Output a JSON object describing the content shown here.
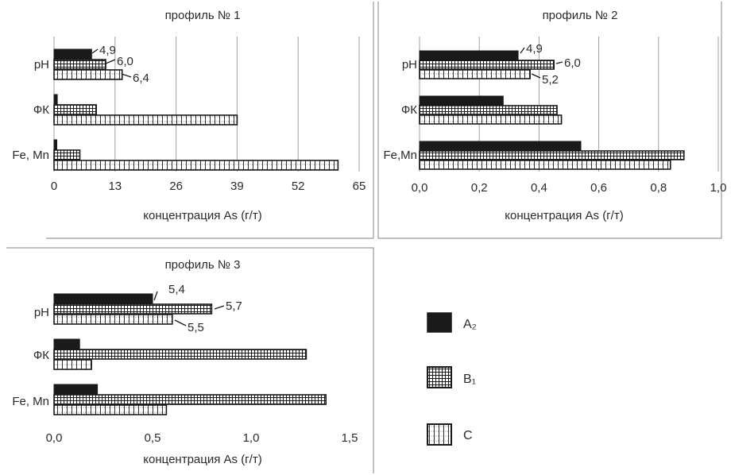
{
  "chart_data": [
    {
      "type": "bar",
      "orientation": "horizontal",
      "title": "профиль № 1",
      "xlabel": "концентрация As (г/т)",
      "categories": [
        "pH",
        "ФК",
        "Fe, Mn"
      ],
      "xlim": [
        0,
        65
      ],
      "xticks": [
        "0",
        "13",
        "26",
        "39",
        "52",
        "65"
      ],
      "grid": true,
      "series": [
        {
          "name": "A₂",
          "values": [
            8,
            0.7,
            0.6
          ]
        },
        {
          "name": "B₁",
          "values": [
            11,
            9,
            5.5
          ]
        },
        {
          "name": "C",
          "values": [
            14.5,
            39,
            60.5
          ]
        }
      ],
      "annotations": [
        {
          "category": "pH",
          "series": "A₂",
          "text": "4,9"
        },
        {
          "category": "pH",
          "series": "B₁",
          "text": "6,0"
        },
        {
          "category": "pH",
          "series": "C",
          "text": "6,4"
        }
      ]
    },
    {
      "type": "bar",
      "orientation": "horizontal",
      "title": "профиль № 2",
      "xlabel": "концентрация As (г/т)",
      "categories": [
        "pH",
        "ФК",
        "Fe,Mn"
      ],
      "xlim": [
        0,
        1.0
      ],
      "xticks": [
        "0,0",
        "0,2",
        "0,4",
        "0,6",
        "0,8",
        "1,0"
      ],
      "grid": true,
      "series": [
        {
          "name": "A₂",
          "values": [
            0.33,
            0.28,
            0.54
          ]
        },
        {
          "name": "B₁",
          "values": [
            0.45,
            0.46,
            0.885
          ]
        },
        {
          "name": "C",
          "values": [
            0.37,
            0.475,
            0.84
          ]
        }
      ],
      "annotations": [
        {
          "category": "pH",
          "series": "A₂",
          "text": "4,9"
        },
        {
          "category": "pH",
          "series": "B₁",
          "text": "6,0"
        },
        {
          "category": "pH",
          "series": "C",
          "text": "5,2"
        }
      ]
    },
    {
      "type": "bar",
      "orientation": "horizontal",
      "title": "профиль № 3",
      "xlabel": "концентрация As (г/т)",
      "categories": [
        "pH",
        "ФК",
        "Fe, Mn"
      ],
      "xlim": [
        0,
        1.5
      ],
      "xticks": [
        "0,0",
        "0,5",
        "1,0",
        "1,5"
      ],
      "grid": false,
      "series": [
        {
          "name": "A₂",
          "values": [
            0.5,
            0.13,
            0.22
          ]
        },
        {
          "name": "B₁",
          "values": [
            0.8,
            1.28,
            1.38
          ]
        },
        {
          "name": "C",
          "values": [
            0.6,
            0.19,
            0.57
          ]
        }
      ],
      "annotations": [
        {
          "category": "pH",
          "series": "A₂",
          "text": "5,4"
        },
        {
          "category": "pH",
          "series": "B₁",
          "text": "5,7"
        },
        {
          "category": "pH",
          "series": "C",
          "text": "5,5"
        }
      ]
    }
  ],
  "legend": {
    "items": [
      {
        "label": "A₂",
        "pattern": "solid",
        "color": "#1a1a1a"
      },
      {
        "label": "B₁",
        "pattern": "grid",
        "color": "#1a1a1a"
      },
      {
        "label": "C",
        "pattern": "dotted-grid",
        "color": "#1a1a1a"
      }
    ]
  },
  "colors": {
    "bar_outline": "#1a1a1a",
    "grid": "#a0a0a0",
    "panel_border": "#9a9a9a"
  }
}
